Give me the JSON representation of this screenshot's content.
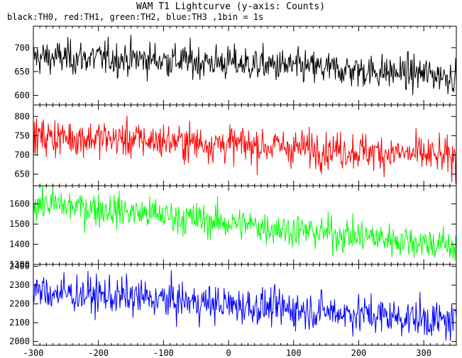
{
  "chart_data": {
    "type": "line",
    "title": "WAM T1 Lightcurve (y-axis: Counts)",
    "subtitle": "black:TH0, red:TH1, green:TH2, blue:TH3 ,1bin = 1s",
    "xlim": [
      -300,
      350
    ],
    "x_ticks": [
      -300,
      -200,
      -100,
      0,
      100,
      200,
      300
    ],
    "grid": false,
    "panels": [
      {
        "name": "TH0",
        "color": "#000000",
        "ylim": [
          580,
          745
        ],
        "y_ticks": [
          600,
          650,
          700
        ],
        "trend": {
          "x": [
            -300,
            -150,
            0,
            150,
            300,
            350
          ],
          "y": [
            680,
            677,
            668,
            656,
            645,
            640
          ]
        },
        "noise_sd": 18
      },
      {
        "name": "TH1",
        "color": "#ff0000",
        "ylim": [
          620,
          830
        ],
        "y_ticks": [
          650,
          700,
          750,
          800
        ],
        "trend": {
          "x": [
            -300,
            -150,
            0,
            150,
            300,
            350
          ],
          "y": [
            748,
            740,
            728,
            715,
            700,
            690
          ]
        },
        "noise_sd": 24
      },
      {
        "name": "TH2",
        "color": "#00ff00",
        "ylim": [
          1300,
          1690
        ],
        "y_ticks": [
          1300,
          1400,
          1500,
          1600
        ],
        "trend": {
          "x": [
            -300,
            -150,
            0,
            150,
            300,
            350
          ],
          "y": [
            1605,
            1560,
            1505,
            1455,
            1410,
            1390
          ]
        },
        "noise_sd": 42
      },
      {
        "name": "TH3",
        "color": "#0000ff",
        "ylim": [
          1980,
          2410
        ],
        "y_ticks": [
          2000,
          2100,
          2200,
          2300,
          2400
        ],
        "trend": {
          "x": [
            -300,
            -150,
            0,
            150,
            300,
            350
          ],
          "y": [
            2265,
            2235,
            2195,
            2160,
            2120,
            2100
          ]
        },
        "noise_sd": 50
      }
    ]
  }
}
